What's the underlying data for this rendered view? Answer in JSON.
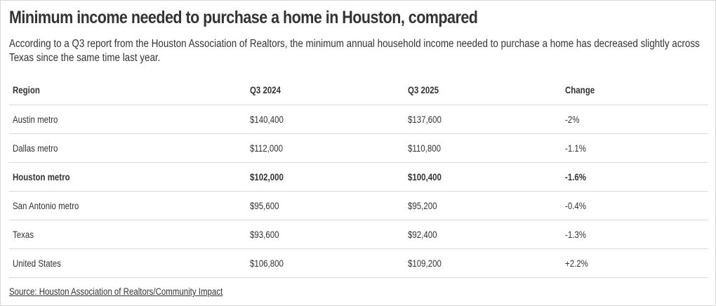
{
  "title": "Minimum income needed to purchase a home in Houston, compared",
  "subtitle": "According to a Q3 report from the Houston Association of Realtors, the minimum annual household income needed to purchase a home has decreased slightly across Texas since the same time last year.",
  "source": "Source: Houston Association of Realtors/Community Impact",
  "chart_data": {
    "type": "table",
    "columns": [
      "Region",
      "Q3 2024",
      "Q3 2025",
      "Change"
    ],
    "rows": [
      {
        "cells": [
          "Austin metro",
          "$140,400",
          "$137,600",
          "-2%"
        ],
        "bold": false
      },
      {
        "cells": [
          "Dallas metro",
          "$112,000",
          "$110,800",
          "-1.1%"
        ],
        "bold": false
      },
      {
        "cells": [
          "Houston metro",
          "$102,000",
          "$100,400",
          "-1.6%"
        ],
        "bold": true
      },
      {
        "cells": [
          "San Antonio metro",
          "$95,600",
          "$95,200",
          "-0.4%"
        ],
        "bold": false
      },
      {
        "cells": [
          "Texas",
          "$93,600",
          "$92,400",
          "-1.3%"
        ],
        "bold": false
      },
      {
        "cells": [
          "United States",
          "$106,800",
          "$109,200",
          "+2.2%"
        ],
        "bold": false
      }
    ]
  }
}
